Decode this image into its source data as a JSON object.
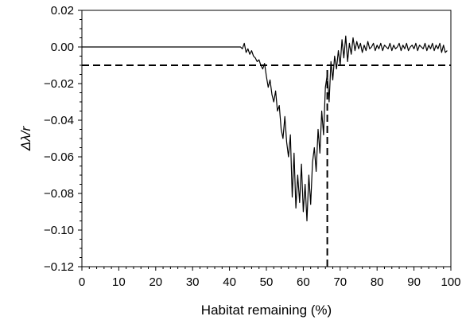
{
  "chart_data": {
    "type": "line",
    "xlabel": "Habitat remaining (%)",
    "ylabel": "Δλ/r",
    "xlim": [
      0,
      100
    ],
    "ylim": [
      -0.12,
      0.02
    ],
    "xticks": [
      0,
      10,
      20,
      30,
      40,
      50,
      60,
      70,
      80,
      90,
      100
    ],
    "yticks": [
      0.02,
      0.0,
      -0.02,
      -0.04,
      -0.06,
      -0.08,
      -0.1,
      -0.12
    ],
    "ytick_labels": [
      "0.02",
      "0.00",
      "−0.02",
      "−0.04",
      "−0.06",
      "−0.08",
      "−0.10",
      "−0.12"
    ],
    "grid": false,
    "series": [
      {
        "style": "solid",
        "color": "#000000",
        "x": [
          0,
          43,
          43.5,
          44,
          44.5,
          45,
          45.5,
          46,
          46.5,
          47,
          47.5,
          48,
          48.5,
          49,
          49.5,
          50,
          50.5,
          51,
          51.5,
          52,
          52.5,
          53,
          53.5,
          54,
          54.5,
          55,
          55.5,
          56,
          56.5,
          57,
          57.5,
          58,
          58.5,
          59,
          59.5,
          60,
          60.5,
          61,
          61.5,
          62,
          62.5,
          63,
          63.5,
          64,
          64.5,
          65,
          65.5,
          66,
          66.5,
          67,
          67.5,
          68,
          68.5,
          69,
          69.5,
          70,
          70.5,
          71,
          71.5,
          72,
          72.5,
          73,
          73.5,
          74,
          74.5,
          75,
          75.5,
          76,
          76.5,
          77,
          77.5,
          78,
          78.5,
          79,
          79.5,
          80,
          80.5,
          81,
          81.5,
          82,
          82.5,
          83,
          83.5,
          84,
          84.5,
          85,
          85.5,
          86,
          86.5,
          87,
          87.5,
          88,
          88.5,
          89,
          89.5,
          90,
          90.5,
          91,
          91.5,
          92,
          92.5,
          93,
          93.5,
          94,
          94.5,
          95,
          95.5,
          96,
          96.5,
          97,
          97.5,
          98,
          98.5,
          99
        ],
        "y": [
          0.0,
          0.0,
          -0.001,
          0.002,
          -0.003,
          -0.001,
          -0.004,
          -0.002,
          -0.005,
          -0.006,
          -0.008,
          -0.007,
          -0.01,
          -0.012,
          -0.009,
          -0.016,
          -0.022,
          -0.018,
          -0.026,
          -0.03,
          -0.024,
          -0.035,
          -0.032,
          -0.045,
          -0.05,
          -0.038,
          -0.052,
          -0.06,
          -0.048,
          -0.082,
          -0.058,
          -0.088,
          -0.07,
          -0.085,
          -0.064,
          -0.09,
          -0.075,
          -0.095,
          -0.07,
          -0.086,
          -0.063,
          -0.055,
          -0.068,
          -0.045,
          -0.058,
          -0.035,
          -0.048,
          -0.022,
          -0.015,
          -0.03,
          -0.008,
          -0.018,
          -0.005,
          -0.012,
          -0.002,
          -0.01,
          0.004,
          -0.006,
          0.006,
          -0.008,
          0.002,
          -0.004,
          0.005,
          -0.002,
          0.003,
          -0.001,
          0.002,
          -0.003,
          0.001,
          -0.002,
          0.003,
          -0.001,
          0.0,
          0.002,
          -0.002,
          0.001,
          -0.001,
          0.002,
          -0.002,
          0.001,
          0.0,
          -0.001,
          0.002,
          -0.002,
          0.001,
          -0.001,
          0.0,
          0.002,
          -0.002,
          0.001,
          -0.001,
          0.002,
          -0.002,
          0.0,
          0.001,
          -0.001,
          0.002,
          -0.002,
          0.001,
          0.0,
          -0.001,
          0.002,
          -0.002,
          0.001,
          -0.001,
          0.002,
          -0.002,
          0.001,
          -0.001,
          0.002,
          -0.003,
          0.001,
          -0.003,
          -0.002
        ]
      },
      {
        "style": "dashed",
        "color": "#000000",
        "x": [
          0,
          100
        ],
        "y": [
          -0.01,
          -0.01
        ]
      },
      {
        "style": "dashed",
        "color": "#000000",
        "x": [
          66.5,
          66.5
        ],
        "y": [
          -0.12,
          -0.01
        ]
      }
    ]
  }
}
